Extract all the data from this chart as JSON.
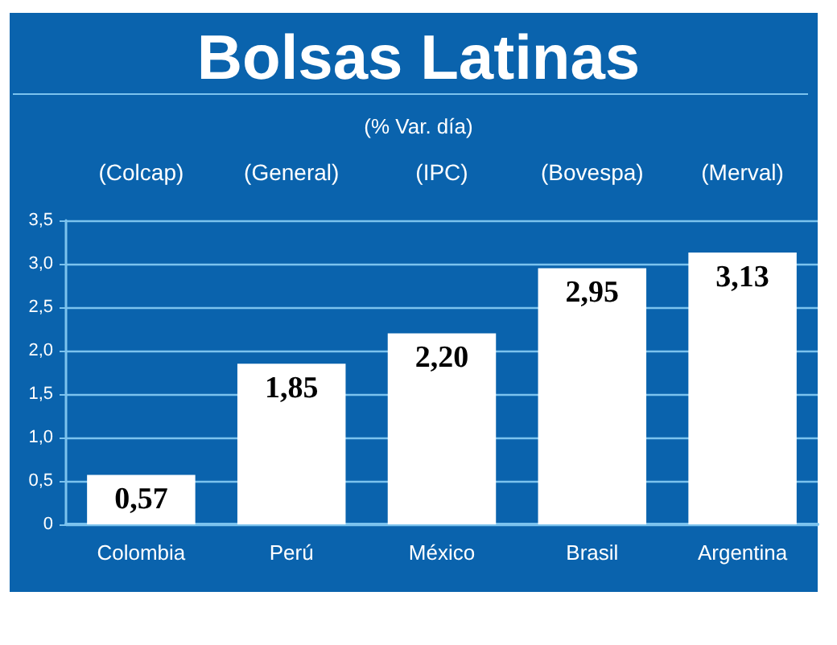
{
  "chart_data": {
    "type": "bar",
    "title": "Bolsas Latinas",
    "subtitle": "(% Var. día)",
    "categories": [
      "Colombia",
      "Perú",
      "México",
      "Brasil",
      "Argentina"
    ],
    "values": [
      0.57,
      1.85,
      2.2,
      2.95,
      3.13
    ],
    "value_labels": [
      "0,57",
      "1,85",
      "2,20",
      "2,95",
      "3,13"
    ],
    "color": "#ffffff",
    "ylim": [
      0,
      3.5
    ],
    "yticks": [
      0,
      {
        "value": 0.5,
        "label": "0,5"
      },
      {
        "value": 1.0,
        "label": "1,0"
      },
      {
        "value": 1.5,
        "label": "1,5"
      },
      {
        "value": 2.0,
        "label": "2,0"
      },
      {
        "value": 2.5,
        "label": "2,5"
      },
      {
        "value": 3.0,
        "label": "3,0"
      },
      {
        "value": 3.5,
        "label": "3,5"
      }
    ],
    "grid": "y",
    "annotations": [
      "(Colcap)",
      "(General)",
      "(IPC)",
      "(Bovespa)",
      "(Merval)"
    ]
  }
}
